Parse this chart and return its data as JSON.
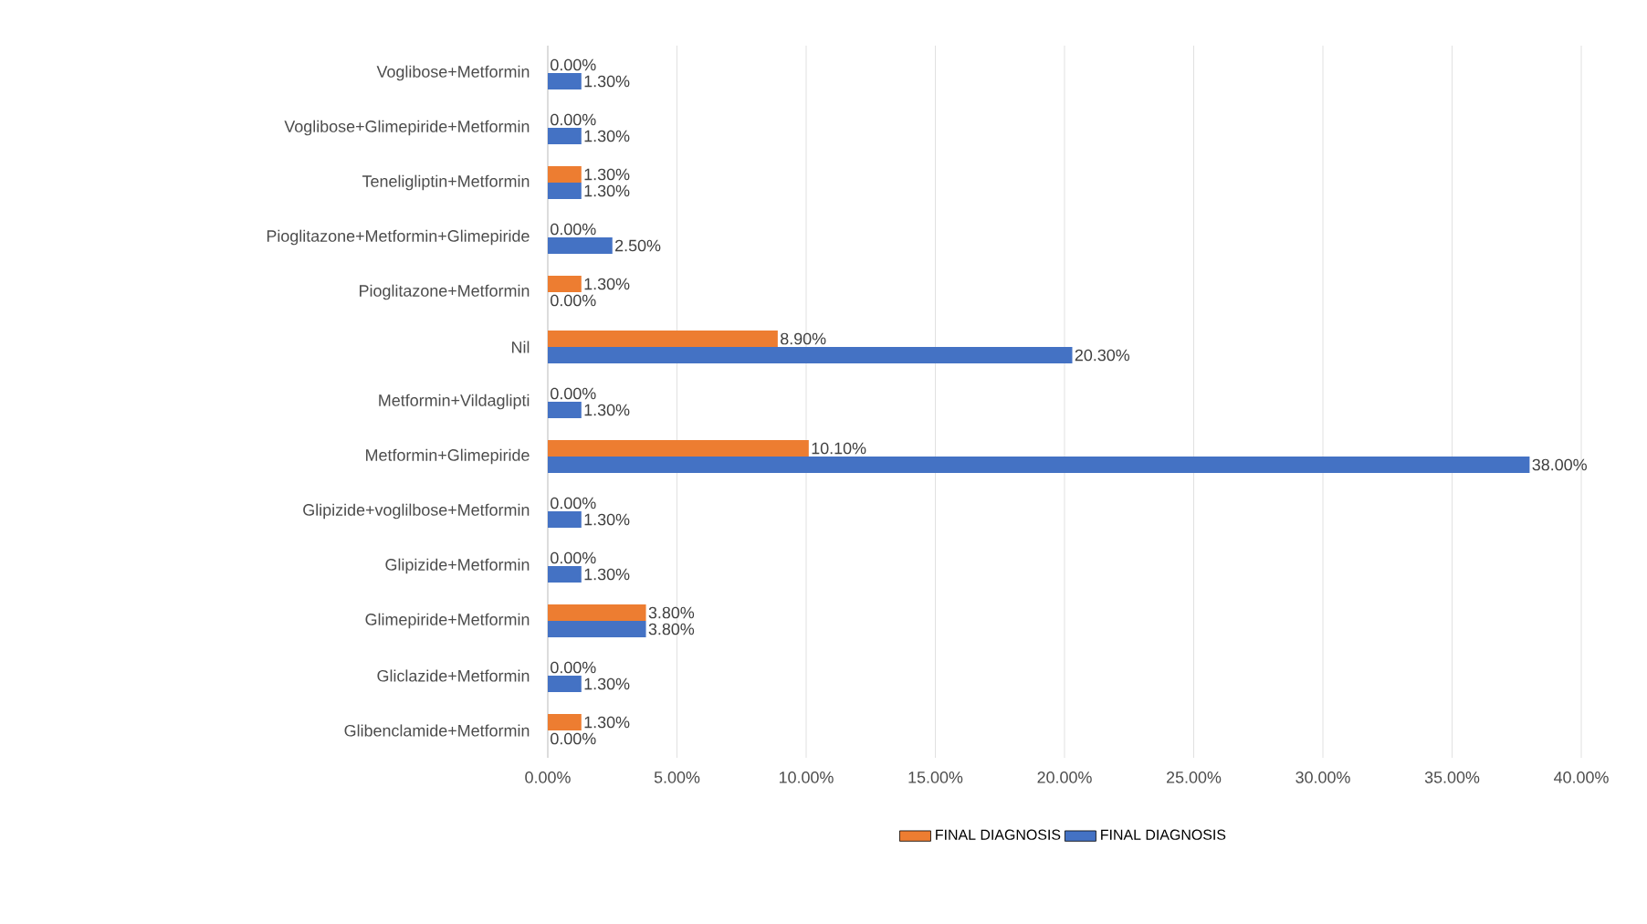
{
  "chart_data": {
    "type": "bar",
    "orientation": "horizontal",
    "categories": [
      "Voglibose+Metformin",
      "Voglibose+Glimepiride+Metformin",
      "Teneligliptin+Metformin",
      "Pioglitazone+Metformin+Glimepiride",
      "Pioglitazone+Metformin",
      "Nil",
      "Metformin+Vildaglipti",
      "Metformin+Glimepiride",
      "Glipizide+voglilbose+Metformin",
      "Glipizide+Metformin",
      "Glimepiride+Metformin",
      "Gliclazide+Metformin",
      "Glibenclamide+Metformin"
    ],
    "series": [
      {
        "name": "FINAL DIAGNOSIS",
        "color": "#ed7d31",
        "values": [
          0,
          0,
          1.3,
          0,
          1.3,
          8.9,
          0,
          10.1,
          0,
          0,
          3.8,
          0,
          1.3
        ],
        "value_labels": [
          "0.00%",
          "0.00%",
          "1.30%",
          "0.00%",
          "1.30%",
          "8.90%",
          "0.00%",
          "10.10%",
          "0.00%",
          "0.00%",
          "3.80%",
          "0.00%",
          "1.30%"
        ]
      },
      {
        "name": "FINAL DIAGNOSIS",
        "color": "#4472c4",
        "values": [
          1.3,
          1.3,
          1.3,
          2.5,
          0,
          20.3,
          1.3,
          38,
          1.3,
          1.3,
          3.8,
          1.3,
          0
        ],
        "value_labels": [
          "1.30%",
          "1.30%",
          "1.30%",
          "2.50%",
          "0.00%",
          "20.30%",
          "1.30%",
          "38.00%",
          "1.30%",
          "1.30%",
          "3.80%",
          "1.30%",
          "0.00%"
        ]
      }
    ],
    "xlim": [
      0,
      40
    ],
    "xticks": [
      {
        "value": 0,
        "label": "0.00%"
      },
      {
        "value": 5,
        "label": "5.00%"
      },
      {
        "value": 10,
        "label": "10.00%"
      },
      {
        "value": 15,
        "label": "15.00%"
      },
      {
        "value": 20,
        "label": "20.00%"
      },
      {
        "value": 25,
        "label": "25.00%"
      },
      {
        "value": 30,
        "label": "30.00%"
      },
      {
        "value": 35,
        "label": "35.00%"
      },
      {
        "value": 40,
        "label": "40.00%"
      }
    ],
    "grid": "x",
    "legend": "bottom"
  }
}
